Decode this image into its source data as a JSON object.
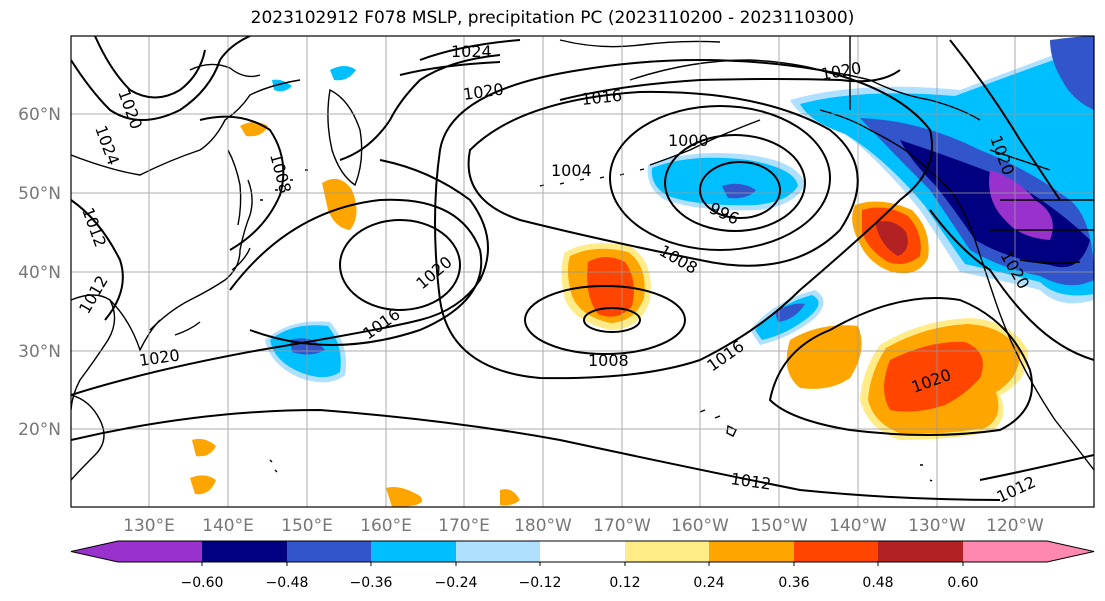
{
  "title": "2023102912 F078 MSLP, precipitation PC (2023110200 - 2023110300)",
  "lat_labels": [
    "60°N",
    "50°N",
    "40°N",
    "30°N",
    "20°N"
  ],
  "lon_labels": [
    "130°E",
    "140°E",
    "150°E",
    "160°E",
    "170°E",
    "180°W",
    "170°W",
    "160°W",
    "150°W",
    "140°W",
    "130°W",
    "120°W"
  ],
  "isobar_labels": [
    "1024",
    "1020",
    "1020",
    "1016",
    "1024",
    "1012",
    "1008",
    "1004",
    "1000",
    "996",
    "1008",
    "1020",
    "1016",
    "1020",
    "1012",
    "1008",
    "1016",
    "1020",
    "1020",
    "1012",
    "1012",
    "1020",
    "1020"
  ],
  "colorbar": {
    "colors": [
      "#9932CC",
      "#000080",
      "#3355CC",
      "#00BFFF",
      "#B0E0FF",
      "#FFFFFF",
      "#FFEB88",
      "#FFA500",
      "#FF4500",
      "#B22222",
      "#FF88B0"
    ],
    "ticks": [
      "−0.60",
      "−0.48",
      "−0.36",
      "−0.24",
      "−0.12",
      "0.12",
      "0.24",
      "0.36",
      "0.48",
      "0.60"
    ]
  },
  "style": {
    "grid": true,
    "land_outline_color": "#000000",
    "isobar_color": "#000000"
  }
}
